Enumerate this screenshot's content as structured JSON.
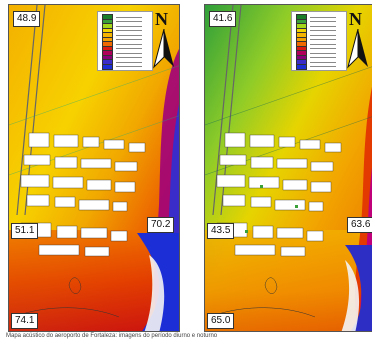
{
  "panels": [
    {
      "id": "left",
      "labels": {
        "top_left": "48.9",
        "mid_left": "51.1",
        "mid_right": "70.2",
        "bottom_left": "74.1"
      },
      "colors": [
        "#f4a300",
        "#f7d000",
        "#ee6a00",
        "#d81a10",
        "#a0007a",
        "#3a2cc8",
        "#1c2fd6"
      ]
    },
    {
      "id": "right",
      "labels": {
        "top_left": "41.6",
        "mid_left": "43.5",
        "mid_right": "63.6",
        "bottom_left": "65.0"
      },
      "colors": [
        "#31a63a",
        "#a6d61a",
        "#f1d400",
        "#f2a100",
        "#e75c00",
        "#c0007a",
        "#2d2ec4"
      ]
    }
  ],
  "compass": {
    "letter": "N",
    "icon": "north-arrow-icon"
  },
  "legend": {
    "colors": [
      "#1a7d27",
      "#3aa13a",
      "#a6d61a",
      "#f1d400",
      "#f4b400",
      "#f2a100",
      "#ee6a00",
      "#d81a10",
      "#b0005a",
      "#8a007a",
      "#3a2cc8",
      "#1c2fd6"
    ]
  },
  "caption": "Mapa acústico do aeroporto de Fortaleza: imagens do período diurno e noturno"
}
